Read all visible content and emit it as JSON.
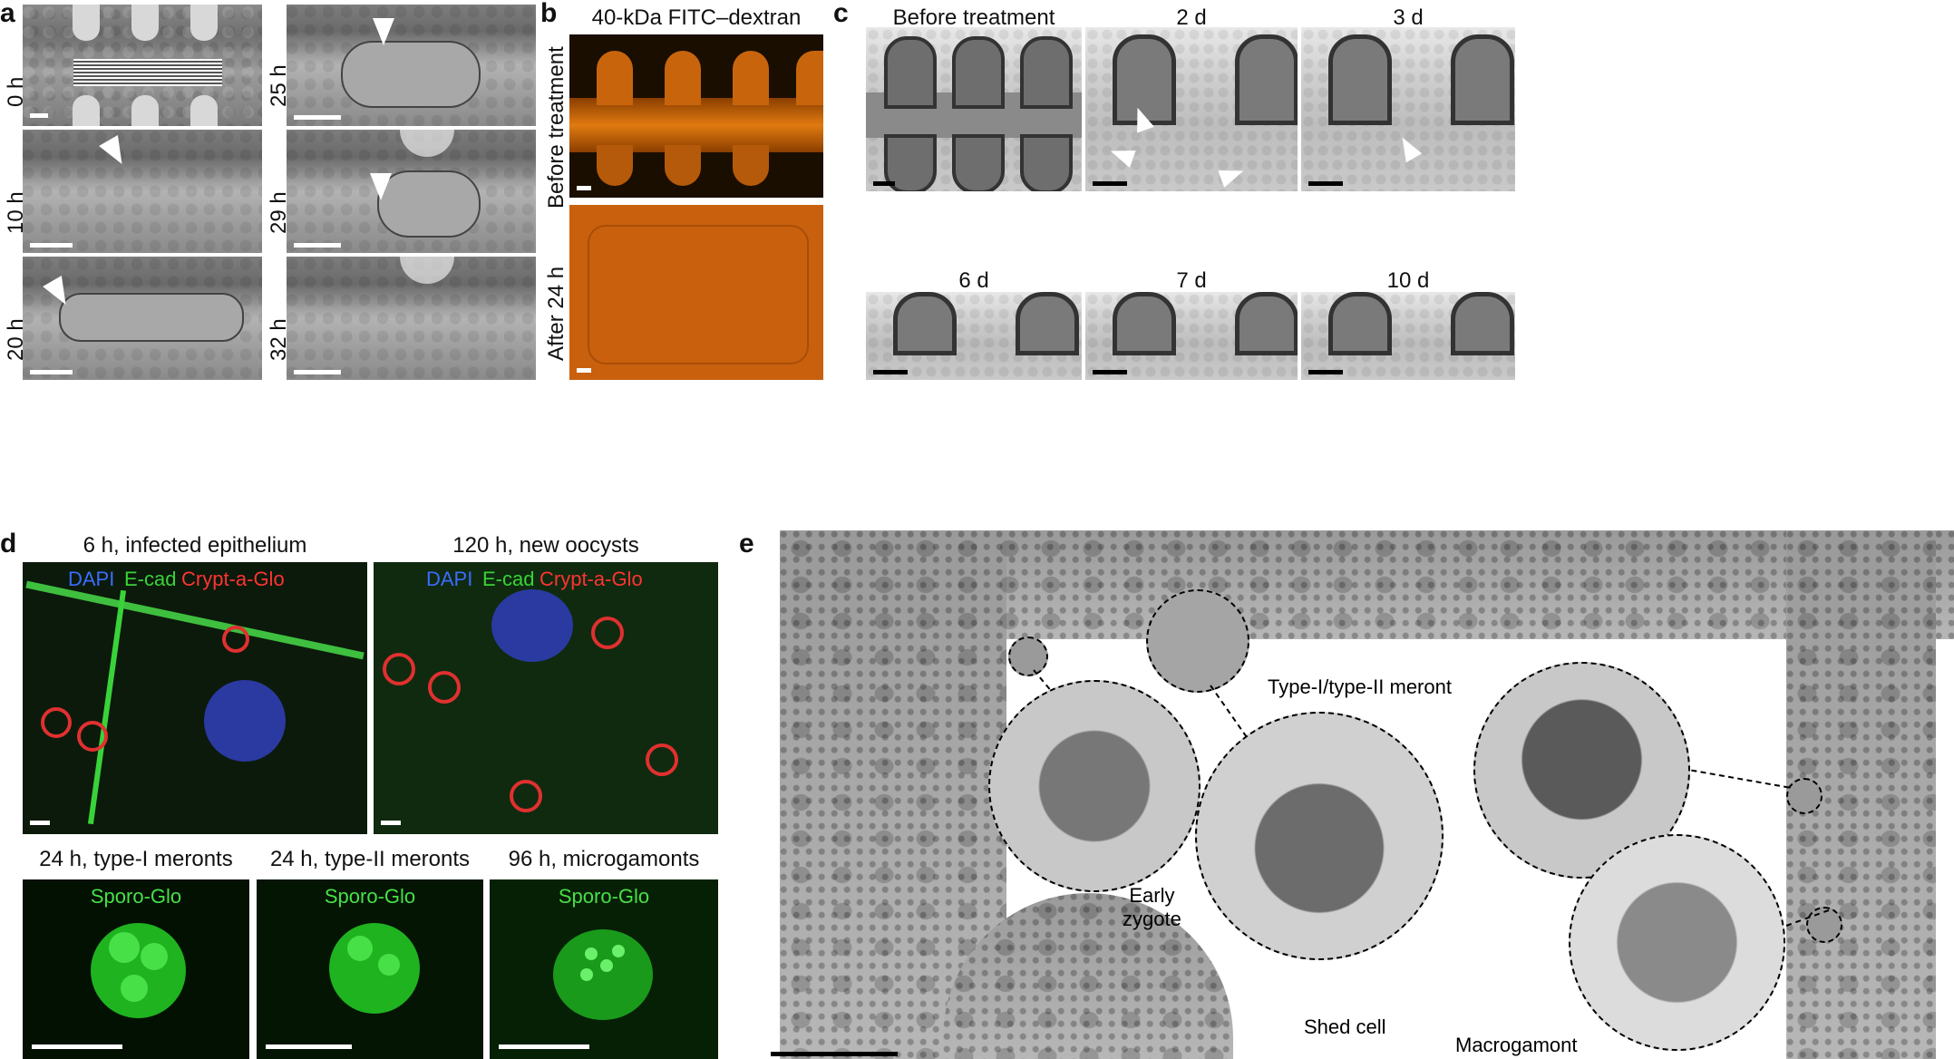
{
  "panel_a": {
    "letter": "a",
    "left_labels": [
      "0 h",
      "10 h",
      "20 h"
    ],
    "right_labels": [
      "25 h",
      "29 h",
      "32 h"
    ]
  },
  "panel_b": {
    "letter": "b",
    "title": "40-kDa FITC–dextran",
    "row_labels": [
      "Before treatment",
      "After 24 h"
    ]
  },
  "panel_c": {
    "letter": "c",
    "top_titles": [
      "Before treatment",
      "2 d",
      "3 d"
    ],
    "bottom_titles": [
      "6 d",
      "7 d",
      "10 d"
    ]
  },
  "panel_d": {
    "letter": "d",
    "top_titles": [
      "6 h, infected epithelium",
      "120 h, new oocysts"
    ],
    "channel_dapi": "DAPI",
    "channel_ecad": "E-cad",
    "channel_crypt": "Crypt-a-Glo",
    "bottom_titles": [
      "24 h, type-I meronts",
      "24 h, type-II meronts",
      "96 h, microgamonts"
    ],
    "sporo_label": "Sporo-Glo"
  },
  "panel_e": {
    "letter": "e",
    "labels": {
      "meront": "Type-I/type-II meront",
      "early_zygote": "Early\nzygote",
      "shed_cell": "Shed cell",
      "macrogamont": "Macrogamont"
    }
  },
  "colors": {
    "dapi": "#3b6cff",
    "ecad": "#39d339",
    "crypt": "#ff3333",
    "sporo": "#47e047",
    "fitc": "#f07a10"
  }
}
